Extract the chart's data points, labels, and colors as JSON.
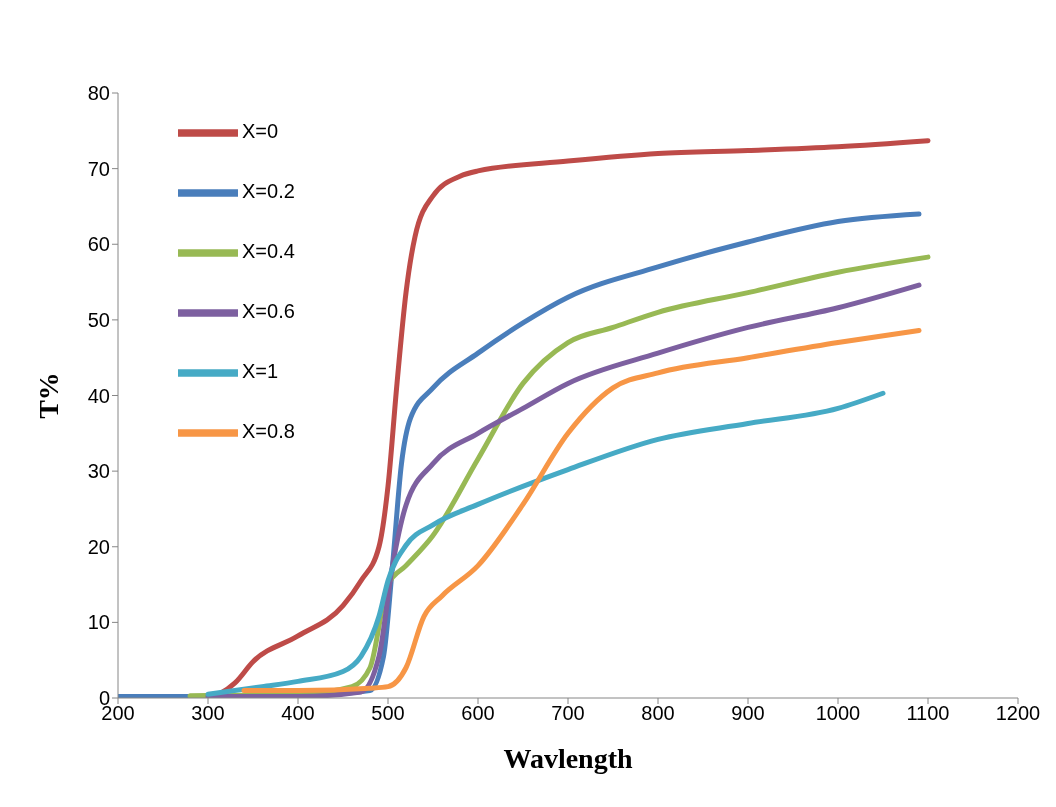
{
  "chart_data": {
    "type": "line",
    "xlabel": "Wavlength",
    "ylabel": "T%",
    "xlim": [
      200,
      1200
    ],
    "xticks": [
      200,
      300,
      400,
      500,
      600,
      700,
      800,
      900,
      1000,
      1100,
      1200
    ],
    "ylim": [
      0,
      80
    ],
    "yticks": [
      0,
      10,
      20,
      30,
      40,
      50,
      60,
      70,
      80
    ],
    "grid": false,
    "legend": "top left",
    "marker": "none",
    "line_style": "solid",
    "series": [
      {
        "name": "X=0",
        "color": "#be4b48",
        "x": [
          200,
          300,
          330,
          350,
          400,
          450,
          470,
          490,
          500,
          510,
          520,
          530,
          550,
          580,
          600,
          700,
          800,
          900,
          1000,
          1100
        ],
        "values": [
          0.2,
          0.2,
          2,
          4.8,
          8.2,
          12.2,
          15.5,
          20,
          28,
          41.6,
          53.6,
          61,
          66.4,
          69,
          69.7,
          71,
          72,
          72.4,
          72.9,
          73.7
        ]
      },
      {
        "name": "X=0.2",
        "color": "#4a7ebb",
        "x": [
          200,
          300,
          400,
          480,
          495,
          505,
          515,
          525,
          550,
          600,
          650,
          700,
          800,
          900,
          1000,
          1090
        ],
        "values": [
          0.2,
          0.2,
          0.3,
          1,
          5.5,
          17.5,
          31,
          37,
          41,
          45.6,
          49.6,
          53,
          57,
          60.3,
          63,
          64
        ]
      },
      {
        "name": "X=0.4",
        "color": "#98b954",
        "x": [
          280,
          400,
          460,
          480,
          500,
          520,
          550,
          600,
          650,
          700,
          750,
          800,
          900,
          1000,
          1100
        ],
        "values": [
          0.3,
          0.5,
          1.5,
          4,
          15,
          17.5,
          21.5,
          31.6,
          41.6,
          47,
          49,
          51,
          53.6,
          56.3,
          58.3
        ]
      },
      {
        "name": "X=0.6",
        "color": "#7d60a0",
        "x": [
          300,
          400,
          470,
          490,
          505,
          520,
          550,
          600,
          650,
          700,
          800,
          900,
          1000,
          1090
        ],
        "values": [
          0.2,
          0.2,
          0.8,
          5.5,
          17.5,
          25.5,
          31,
          35,
          38.3,
          41.6,
          45.6,
          49,
          51.6,
          54.6
        ]
      },
      {
        "name": "X=1",
        "color": "#46aac5",
        "x": [
          300,
          360,
          400,
          450,
          470,
          490,
          500,
          520,
          550,
          600,
          700,
          800,
          900,
          1000,
          1050
        ],
        "values": [
          0.5,
          1.5,
          2.2,
          3.5,
          5.5,
          10.8,
          15.5,
          20.2,
          22.9,
          25.6,
          30.2,
          34.2,
          36.3,
          38.3,
          40.3
        ]
      },
      {
        "name": "X=0.8",
        "color": "#f79646",
        "x": [
          340,
          400,
          480,
          500,
          520,
          540,
          560,
          600,
          650,
          700,
          750,
          800,
          900,
          1000,
          1090
        ],
        "values": [
          1,
          1,
          1.3,
          1.5,
          4,
          10.8,
          13.5,
          17.5,
          25.6,
          35,
          41,
          43,
          45,
          47,
          48.6
        ]
      }
    ]
  }
}
